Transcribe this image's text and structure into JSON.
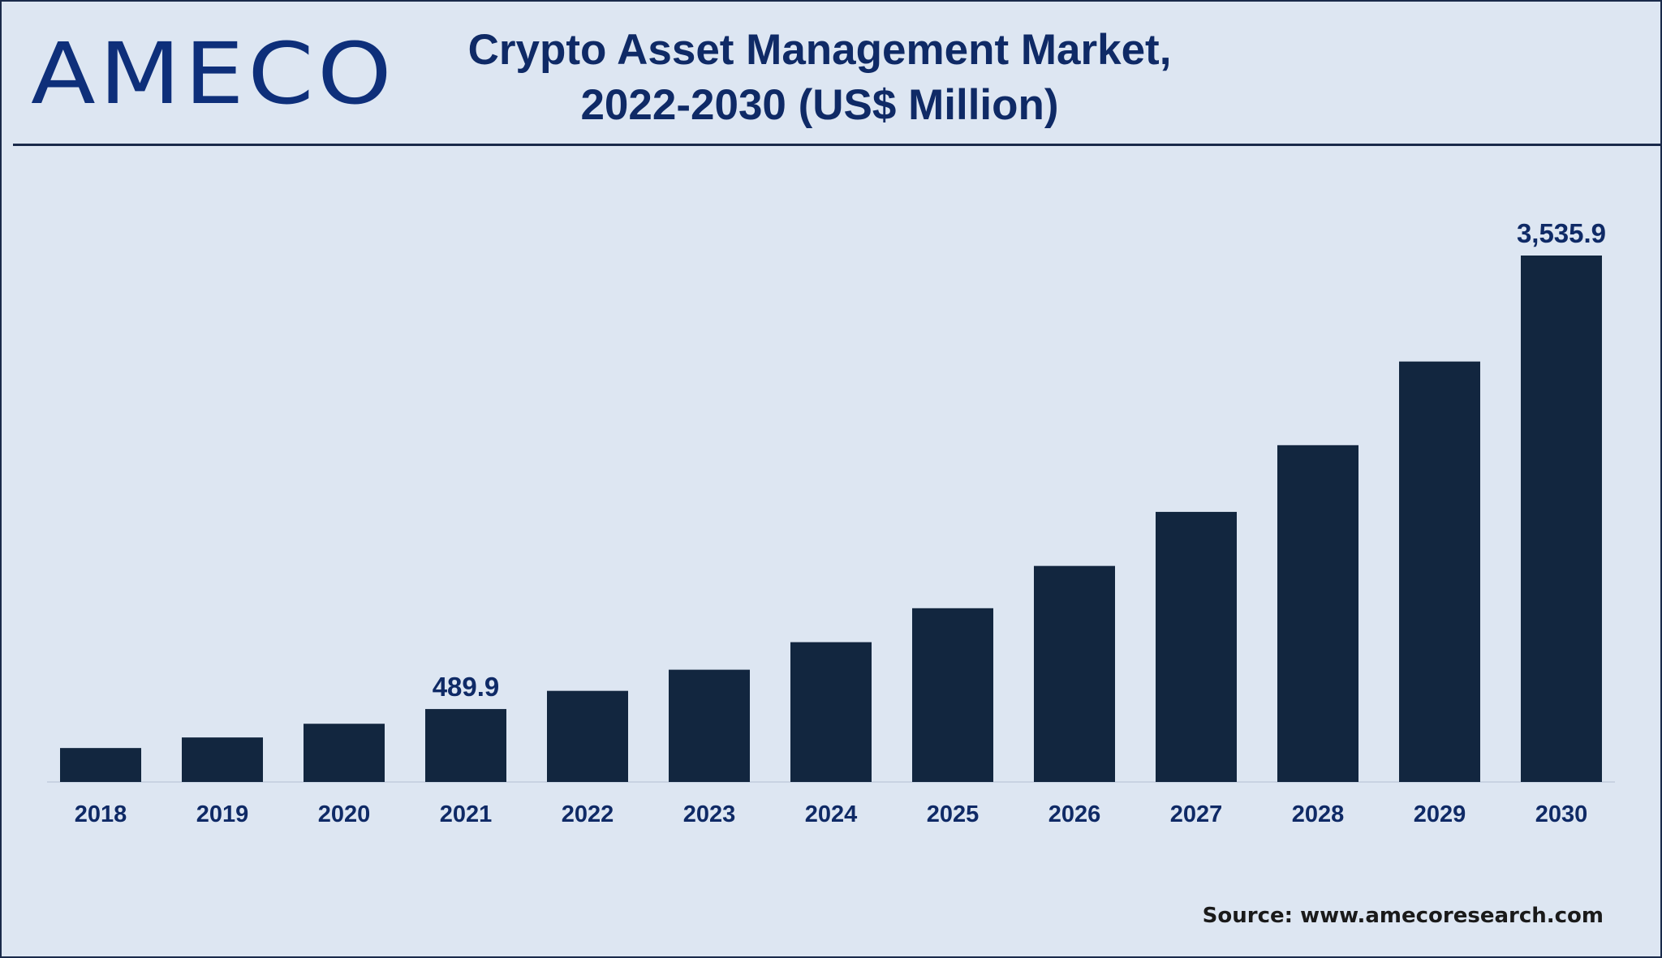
{
  "logo": "AMECO",
  "title_line1": "Crypto Asset Management Market,",
  "title_line2": "2022-2030 (US$ Million)",
  "source": "Source: www.amecoresearch.com",
  "colors": {
    "bar": "#12263f",
    "background": "#dde6f2",
    "text": "#0f2a66"
  },
  "chart_data": {
    "type": "bar",
    "title": "Crypto Asset Management Market, 2022-2030 (US$ Million)",
    "categories": [
      "2018",
      "2019",
      "2020",
      "2021",
      "2022",
      "2023",
      "2024",
      "2025",
      "2026",
      "2027",
      "2028",
      "2029",
      "2030"
    ],
    "values": [
      228,
      299,
      391,
      489.9,
      612,
      754,
      939,
      1167,
      1451,
      1814,
      2262,
      2824,
      3535.9
    ],
    "data_labels": {
      "2021": "489.9",
      "2030": "3,535.9"
    },
    "xlabel": "",
    "ylabel": "",
    "ylim": [
      0,
      3535.9
    ],
    "grid": false
  }
}
